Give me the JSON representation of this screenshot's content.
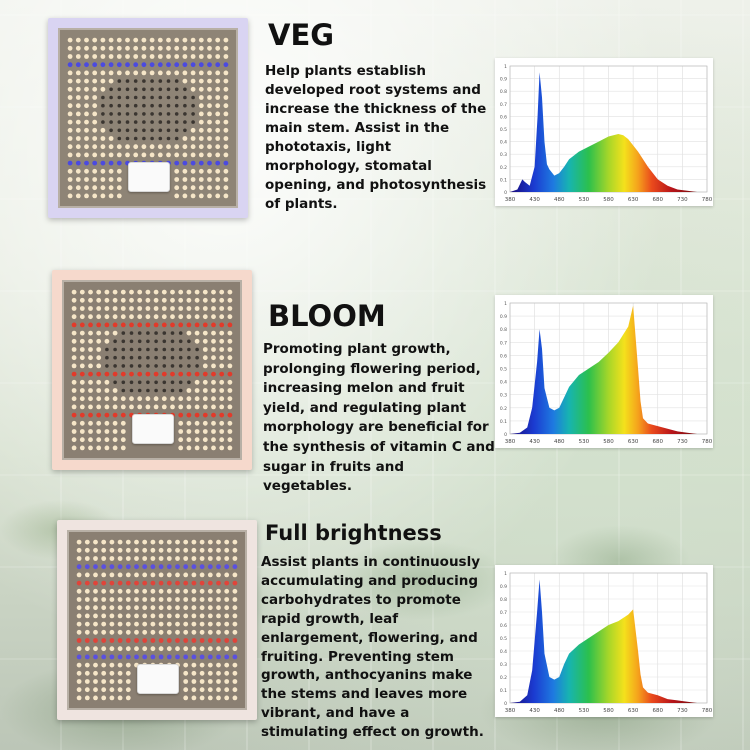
{
  "colors": {
    "veg_accent": "#4b4ae0",
    "bloom_accent": "#e23a2a",
    "full_accent_red": "#e0443a",
    "full_accent_blue": "#5a50e0",
    "led_warm": "#f6e6c8"
  },
  "sections": [
    {
      "key": "veg",
      "title": "VEG",
      "description": "Help plants establish developed root systems and increase the thickness of the main stem. Assist in the phototaxis, light morphology, stomatal opening, and photosynthesis of plants.",
      "chart_data": {
        "type": "area",
        "x_ticks": [
          "380",
          "430",
          "480",
          "530",
          "580",
          "630",
          "680",
          "730",
          "780"
        ],
        "y_ticks": [
          "0",
          "0.1",
          "0.2",
          "0.3",
          "0.4",
          "0.5",
          "0.6",
          "0.7",
          "0.8",
          "0.9",
          "1"
        ],
        "xlim": [
          380,
          780
        ],
        "ylim": [
          0,
          1
        ],
        "x": [
          380,
          395,
          405,
          410,
          420,
          430,
          436,
          440,
          445,
          450,
          455,
          460,
          470,
          480,
          490,
          500,
          520,
          540,
          560,
          580,
          600,
          610,
          620,
          640,
          660,
          680,
          700,
          720,
          740,
          760,
          780
        ],
        "values": [
          0.0,
          0.02,
          0.1,
          0.08,
          0.05,
          0.2,
          0.6,
          0.95,
          0.75,
          0.4,
          0.22,
          0.18,
          0.13,
          0.15,
          0.2,
          0.26,
          0.32,
          0.36,
          0.4,
          0.44,
          0.46,
          0.45,
          0.42,
          0.32,
          0.2,
          0.1,
          0.05,
          0.02,
          0.01,
          0.0,
          0.0
        ]
      }
    },
    {
      "key": "bloom",
      "title": "BLOOM",
      "description": "Promoting plant growth, prolonging flowering period, increasing melon and fruit yield, and regulating plant morphology are beneficial for the synthesis of vitamin C and sugar in fruits and vegetables.",
      "chart_data": {
        "type": "area",
        "x_ticks": [
          "380",
          "430",
          "480",
          "530",
          "580",
          "630",
          "680",
          "730",
          "780"
        ],
        "y_ticks": [
          "0",
          "0.1",
          "0.2",
          "0.3",
          "0.4",
          "0.5",
          "0.6",
          "0.7",
          "0.8",
          "0.9",
          "1"
        ],
        "xlim": [
          380,
          780
        ],
        "ylim": [
          0,
          1
        ],
        "x": [
          380,
          400,
          415,
          425,
          435,
          440,
          445,
          450,
          460,
          470,
          480,
          490,
          500,
          520,
          540,
          560,
          580,
          600,
          620,
          630,
          640,
          645,
          650,
          660,
          680,
          700,
          720,
          740,
          760,
          780
        ],
        "values": [
          0.0,
          0.01,
          0.05,
          0.2,
          0.55,
          0.8,
          0.65,
          0.35,
          0.2,
          0.18,
          0.2,
          0.28,
          0.36,
          0.45,
          0.5,
          0.55,
          0.62,
          0.7,
          0.82,
          0.98,
          0.5,
          0.25,
          0.12,
          0.08,
          0.06,
          0.04,
          0.02,
          0.01,
          0.0,
          0.0
        ]
      }
    },
    {
      "key": "full",
      "title": "Full brightness",
      "description": "Assist plants in continuously accumulating and producing carbohydrates to promote rapid growth, leaf enlargement, flowering, and fruiting. Preventing stem growth, anthocyanins make the stems and leaves more vibrant, and have a stimulating effect on growth.",
      "chart_data": {
        "type": "area",
        "x_ticks": [
          "380",
          "430",
          "480",
          "530",
          "580",
          "630",
          "680",
          "730",
          "780"
        ],
        "y_ticks": [
          "0",
          "0.1",
          "0.2",
          "0.3",
          "0.4",
          "0.5",
          "0.6",
          "0.7",
          "0.8",
          "0.9",
          "1"
        ],
        "xlim": [
          380,
          780
        ],
        "ylim": [
          0,
          1
        ],
        "x": [
          380,
          400,
          415,
          425,
          435,
          440,
          445,
          450,
          460,
          470,
          480,
          490,
          500,
          520,
          540,
          560,
          580,
          600,
          620,
          630,
          640,
          645,
          650,
          660,
          680,
          700,
          720,
          740,
          760,
          780
        ],
        "values": [
          0.0,
          0.01,
          0.06,
          0.25,
          0.7,
          0.95,
          0.7,
          0.38,
          0.2,
          0.18,
          0.2,
          0.3,
          0.38,
          0.45,
          0.5,
          0.55,
          0.6,
          0.63,
          0.68,
          0.72,
          0.4,
          0.22,
          0.12,
          0.08,
          0.06,
          0.03,
          0.02,
          0.01,
          0.0,
          0.0
        ]
      }
    }
  ]
}
